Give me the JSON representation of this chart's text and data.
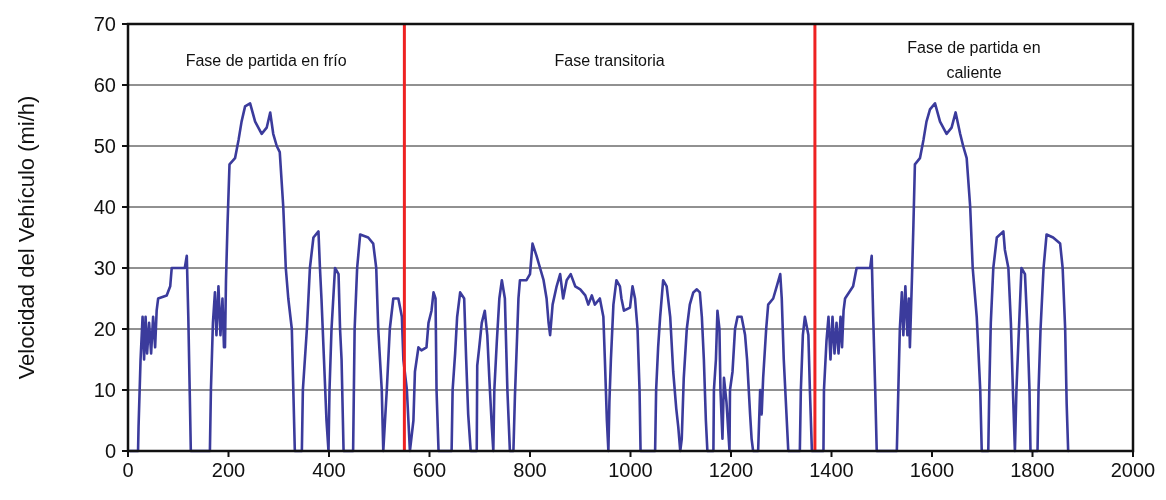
{
  "chart_data": {
    "type": "line",
    "ylabel": "Velocidad del Vehículo (mi/h)",
    "xlim": [
      0,
      2000
    ],
    "xticks": [
      0,
      200,
      400,
      600,
      800,
      1000,
      1200,
      1400,
      1600,
      1800,
      2000
    ],
    "ylim": [
      0,
      70
    ],
    "yticks": [
      0,
      10,
      20,
      30,
      40,
      50,
      60,
      70
    ],
    "grid": "y",
    "marker": "none",
    "line_style": "solid",
    "ref_lines": [
      {
        "axis": "x",
        "value": 550,
        "color": "#ee2222"
      },
      {
        "axis": "x",
        "value": 1367,
        "color": "#ee2222"
      }
    ],
    "annotations": [
      "Fase de partida en frío",
      "Fase transitoria",
      "Fase de partida en\ncaliente"
    ],
    "series": [
      {
        "color": "#3b3b9c",
        "x": [
          4,
          20,
          21,
          25,
          29,
          32,
          35,
          38,
          42,
          46,
          50,
          54,
          57,
          60,
          77,
          84,
          87,
          113,
          117,
          120,
          123,
          125,
          163,
          165,
          169,
          173,
          176,
          180,
          184,
          188,
          191,
          193,
          195,
          198,
          202,
          213,
          220,
          226,
          233,
          243,
          253,
          266,
          276,
          283,
          289,
          296,
          302,
          309,
          314,
          319,
          326,
          329,
          332,
          346,
          348,
          356,
          362,
          369,
          379,
          382,
          385,
          390,
          395,
          399,
          401,
          405,
          412,
          419,
          422,
          425,
          429,
          448,
          451,
          456,
          462,
          478,
          488,
          494,
          498,
          505,
          508,
          515,
          521,
          528,
          538,
          545,
          548,
          555,
          561,
          568,
          571,
          578,
          584,
          594,
          598,
          604,
          608,
          612,
          614,
          618,
          644,
          646,
          651,
          655,
          661,
          669,
          673,
          677,
          682,
          694,
          695,
          699,
          704,
          710,
          715,
          719,
          724,
          727,
          729,
          734,
          739,
          744,
          750,
          755,
          760,
          767,
          770,
          774,
          777,
          780,
          793,
          800,
          805,
          813,
          820,
          827,
          833,
          837,
          840,
          845,
          853,
          860,
          866,
          873,
          881,
          890,
          900,
          910,
          916,
          923,
          929,
          939,
          946,
          949,
          953,
          956,
          958,
          961,
          966,
          972,
          979,
          982,
          987,
          999,
          1004,
          1009,
          1014,
          1018,
          1020,
          1049,
          1051,
          1055,
          1059,
          1065,
          1072,
          1079,
          1085,
          1091,
          1095,
          1099,
          1102,
          1106,
          1112,
          1118,
          1125,
          1132,
          1138,
          1142,
          1146,
          1150,
          1153,
          1165,
          1166,
          1170,
          1173,
          1177,
          1179,
          1183,
          1186,
          1191,
          1197,
          1198,
          1203,
          1208,
          1213,
          1221,
          1228,
          1232,
          1238,
          1241,
          1244,
          1254,
          1258,
          1261,
          1264,
          1270,
          1274,
          1284,
          1291,
          1298,
          1301,
          1305,
          1311,
          1314,
          1337,
          1339,
          1343,
          1347,
          1354,
          1357,
          1361,
          1384,
          1385,
          1390,
          1394,
          1398,
          1402,
          1406,
          1410,
          1414,
          1418,
          1421,
          1424,
          1427,
          1443,
          1450,
          1477,
          1480,
          1483,
          1487,
          1490,
          1530,
          1533,
          1536,
          1540,
          1543,
          1547,
          1551,
          1554,
          1556,
          1560,
          1563,
          1566,
          1576,
          1583,
          1589,
          1596,
          1606,
          1616,
          1629,
          1639,
          1647,
          1656,
          1662,
          1669,
          1676,
          1681,
          1689,
          1692,
          1696,
          1699,
          1712,
          1714,
          1717,
          1722,
          1729,
          1742,
          1745,
          1752,
          1757,
          1761,
          1765,
          1768,
          1773,
          1778,
          1785,
          1790,
          1794,
          1796,
          1810,
          1812,
          1816,
          1822,
          1828,
          1841,
          1855,
          1860,
          1865,
          1868,
          1871
        ],
        "values": [
          0,
          0,
          4,
          15,
          22,
          15,
          22,
          16,
          21,
          16,
          22,
          17,
          23,
          25,
          25.5,
          27,
          30,
          30,
          32,
          22,
          9,
          0,
          0,
          10,
          21,
          26,
          19,
          27,
          19,
          25,
          17,
          17,
          28,
          37,
          47,
          48,
          51,
          54,
          56.5,
          57,
          54,
          52,
          53,
          55.5,
          52,
          50,
          49,
          40,
          30,
          25,
          20,
          10,
          0,
          0,
          10,
          20,
          30,
          35,
          36,
          30,
          25,
          15,
          5,
          0,
          10,
          20,
          30,
          29,
          20,
          15,
          0,
          0,
          20,
          30,
          35.5,
          35,
          34,
          30,
          20,
          10,
          0,
          10,
          20,
          25,
          25,
          22,
          15,
          10,
          0,
          5,
          13,
          17,
          16.5,
          17,
          21,
          23,
          26,
          25,
          10,
          0,
          0,
          10,
          16,
          22,
          26,
          25,
          15,
          6,
          0,
          0,
          14,
          17,
          21,
          23,
          19,
          12,
          4,
          0,
          10,
          18,
          25,
          28,
          25,
          10,
          0,
          0,
          9,
          18,
          25,
          28,
          28,
          29,
          34,
          32,
          30,
          28,
          25,
          21,
          19,
          24,
          27,
          29,
          25,
          28,
          29,
          27,
          26.5,
          25.5,
          24,
          25.5,
          24,
          25,
          22,
          15,
          5,
          0,
          8,
          15,
          24,
          28,
          27,
          25,
          23,
          23.5,
          27,
          25,
          20,
          10,
          0,
          0,
          10,
          17,
          22,
          28,
          27,
          22,
          13,
          7,
          4,
          0,
          2,
          12,
          20,
          24,
          26,
          26.5,
          26,
          22,
          15,
          5,
          0,
          0,
          10,
          15,
          23,
          20,
          10,
          2,
          12,
          8,
          0,
          10,
          13,
          20,
          22,
          22,
          19,
          15,
          6,
          2,
          0,
          0,
          10,
          6,
          12,
          20,
          24,
          25,
          27,
          29,
          25,
          15,
          5,
          0,
          0,
          10,
          19,
          22,
          19,
          10,
          0,
          0,
          10,
          18,
          22,
          15,
          22,
          16,
          21,
          16,
          22,
          17,
          23,
          25,
          27,
          30,
          30,
          32,
          22,
          10,
          0,
          0,
          10,
          20,
          26,
          19,
          27,
          19,
          25,
          17,
          28,
          37,
          47,
          48,
          51,
          54,
          56,
          57,
          54,
          52,
          53,
          55.5,
          52,
          50,
          48,
          40,
          30,
          22,
          17,
          10,
          0,
          0,
          10,
          21,
          30,
          35,
          36,
          33,
          30,
          21,
          10,
          0,
          10,
          20,
          30,
          29,
          20,
          10,
          0,
          0,
          10,
          20,
          30,
          35.5,
          35,
          34,
          30,
          20,
          7.7,
          0
        ]
      }
    ]
  }
}
